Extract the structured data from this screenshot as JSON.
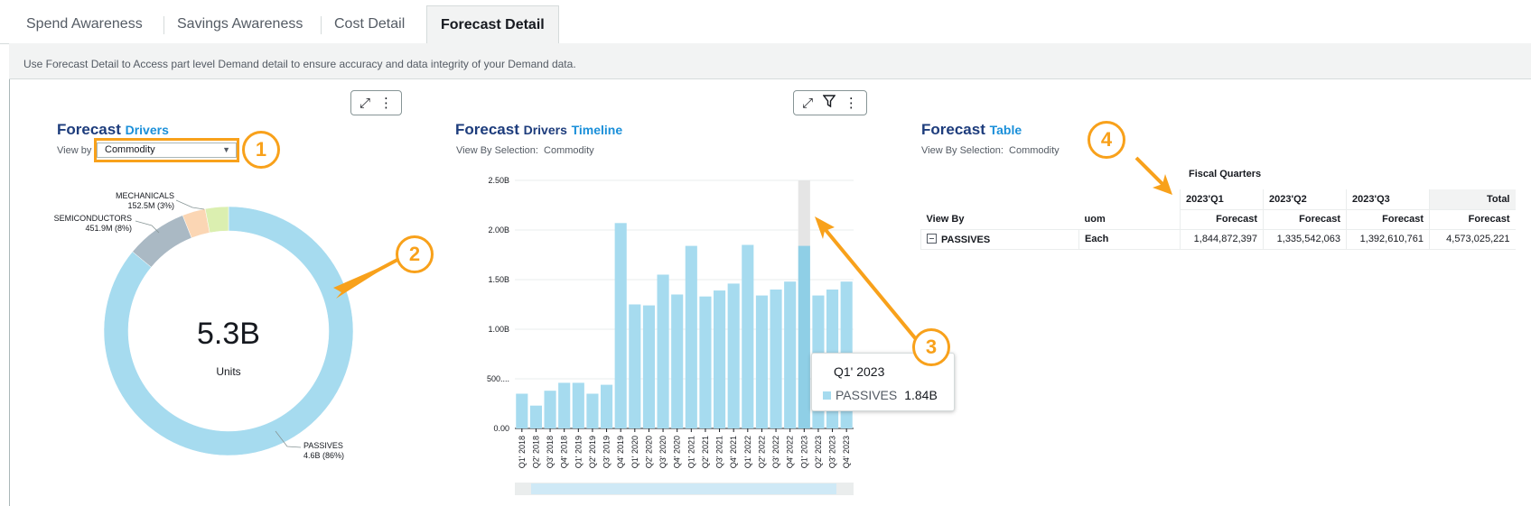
{
  "tabs": [
    {
      "label": "Spend Awareness",
      "active": false
    },
    {
      "label": "Savings Awareness",
      "active": false
    },
    {
      "label": "Cost Detail",
      "active": false
    },
    {
      "label": "Forecast Detail",
      "active": true
    }
  ],
  "description": "Use Forecast Detail to Access part level Demand detail to ensure accuracy and data integrity of your Demand data.",
  "drivers_visual": {
    "title_main": "Forecast",
    "title_hl": "Drivers",
    "view_by_label": "View by",
    "view_by_value": "Commodity",
    "center_value": "5.3B",
    "center_unit": "Units",
    "labels": {
      "mech_name": "MECHANICALS",
      "mech_value": "152.5M (3%)",
      "semi_name": "SEMICONDUCTORS",
      "semi_value": "451.9M (8%)",
      "pass_name": "PASSIVES",
      "pass_value": "4.6B (86%)"
    }
  },
  "timeline_visual": {
    "title_main": "Forecast",
    "title_mid": "Drivers",
    "title_hl": "Timeline",
    "selection_label": "View By Selection:",
    "selection_value": "Commodity",
    "tooltip": {
      "title": "Q1' 2023",
      "series": "PASSIVES",
      "value": "1.84B"
    }
  },
  "table_visual": {
    "title_main": "Forecast",
    "title_hl": "Table",
    "selection_label": "View By Selection:",
    "selection_value": "Commodity",
    "group_header": "Fiscal Quarters",
    "col_view_by": "View By",
    "col_uom": "uom",
    "quarters": [
      "2023'Q1",
      "2023'Q2",
      "2023'Q3"
    ],
    "total_label": "Total",
    "measure": "Forecast",
    "row": {
      "name": "PASSIVES",
      "uom": "Each",
      "values": [
        "1,844,872,397",
        "1,335,542,063",
        "1,392,610,761"
      ],
      "total": "4,573,025,221"
    }
  },
  "callouts": [
    "1",
    "2",
    "3",
    "4"
  ],
  "colors": {
    "accent": "#f8a11b",
    "title": "#1d3c7c",
    "title_hl": "#1a8fd9",
    "passives": "#a6dbef",
    "semiconductors": "#aab9c4",
    "mechanicals": "#fbd6b4",
    "other": "#dbefb0"
  },
  "icons": [
    "expand-icon",
    "more-icon",
    "filter-icon",
    "chevron-down-icon",
    "collapse-icon"
  ],
  "chart_data": [
    {
      "type": "pie",
      "title": "",
      "categories": [
        "PASSIVES",
        "SEMICONDUCTORS",
        "MECHANICALS",
        "Other"
      ],
      "values": [
        86,
        8,
        3,
        3
      ],
      "value_labels": [
        "4.6B (86%)",
        "451.9M (8%)",
        "152.5M (3%)",
        ""
      ],
      "donut": true
    },
    {
      "type": "bar",
      "title": "",
      "categories": [
        "Q1' 2018",
        "Q2' 2018",
        "Q3' 2018",
        "Q4' 2018",
        "Q1' 2019",
        "Q2' 2019",
        "Q3' 2019",
        "Q4' 2019",
        "Q1' 2020",
        "Q2' 2020",
        "Q3' 2020",
        "Q4' 2020",
        "Q1' 2021",
        "Q2' 2021",
        "Q3' 2021",
        "Q4' 2021",
        "Q1' 2022",
        "Q2' 2022",
        "Q3' 2022",
        "Q4' 2022",
        "Q1' 2023",
        "Q2' 2023",
        "Q3' 2023",
        "Q4' 2023"
      ],
      "series": [
        {
          "name": "PASSIVES",
          "values": [
            0.35,
            0.23,
            0.38,
            0.46,
            0.46,
            0.35,
            0.44,
            2.07,
            1.25,
            1.24,
            1.55,
            1.35,
            1.84,
            1.33,
            1.39,
            1.46,
            1.85,
            1.34,
            1.4,
            1.48,
            1.84,
            1.34,
            1.4,
            1.48
          ]
        }
      ],
      "yticks": [
        "0.00",
        "500....",
        "1.00B",
        "1.50B",
        "2.00B",
        "2.50B"
      ],
      "ylim": [
        0,
        2.5
      ],
      "y_unit": "B",
      "highlighted": "Q1' 2023",
      "grid": true
    }
  ]
}
